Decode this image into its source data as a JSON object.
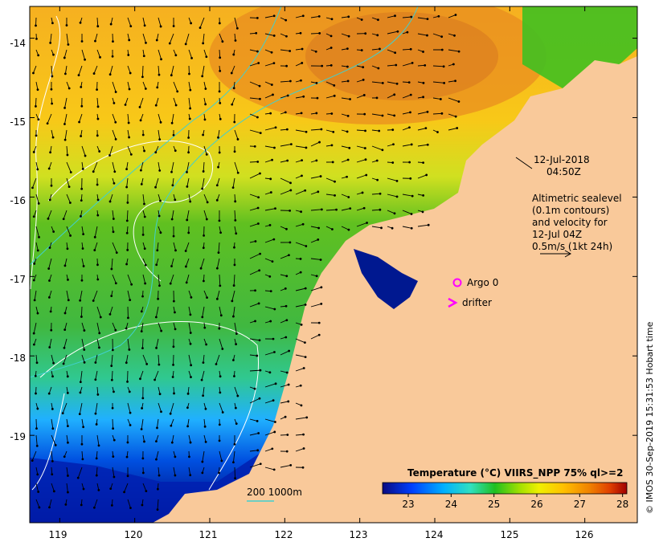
{
  "map": {
    "lon_ticks": [
      "119",
      "120",
      "121",
      "122",
      "123",
      "124",
      "125",
      "126"
    ],
    "lat_ticks": [
      "-14",
      "-15",
      "-16",
      "-17",
      "-18",
      "-19"
    ],
    "lon_range": [
      118.6,
      126.7
    ],
    "lat_range": [
      -20.1,
      -13.6
    ]
  },
  "annotations": {
    "date": "12-Jul-2018",
    "time": "04:50Z",
    "alt_line1": "Altimetric sealevel",
    "alt_line2": "(0.1m contours)",
    "alt_line3": "and velocity for",
    "alt_line4": "12-Jul 04Z",
    "alt_line5": "0.5m/s (1kt 24h)",
    "argo_label": "Argo 0",
    "drifter_label": "drifter",
    "depth_label": "200  1000m"
  },
  "colorbar": {
    "title": "Temperature (°C) VIIRS_NPP 75% ql>=2",
    "ticks": [
      "23",
      "24",
      "25",
      "26",
      "27",
      "28"
    ],
    "range": [
      22.4,
      28.1
    ]
  },
  "credit": "© IMOS 30-Sep-2019 15:31:53 Hobart time",
  "colors": {
    "land": "#f9c99a",
    "argo": "#ff00ff",
    "drifter": "#ff00ff",
    "depth_contour": "#40d0d0",
    "sealevel_contour": "#ffffff"
  }
}
